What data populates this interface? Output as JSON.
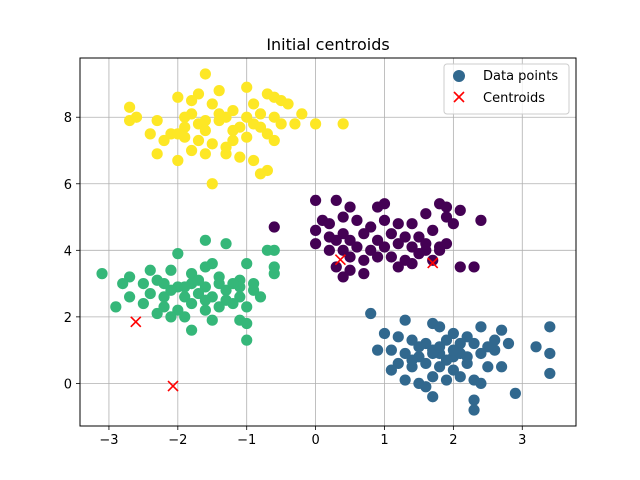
{
  "chart_data": {
    "type": "scatter",
    "title": "Initial centroids",
    "xlabel": "",
    "ylabel": "",
    "xlim": [
      -3.42,
      3.78
    ],
    "ylim": [
      -1.28,
      9.78
    ],
    "xticks": [
      -3,
      -2,
      -1,
      0,
      1,
      2,
      3
    ],
    "yticks": [
      0,
      2,
      4,
      6,
      8
    ],
    "grid": true,
    "legend_position": "top-right",
    "legend": [
      "Data points",
      "Centroids"
    ],
    "clusters": [
      {
        "color": "#fde725",
        "points": [
          [
            -1.6,
            9.3
          ],
          [
            -1.7,
            8.7
          ],
          [
            -1.4,
            8.8
          ],
          [
            -1.0,
            8.9
          ],
          [
            -0.7,
            8.7
          ],
          [
            -0.4,
            8.4
          ],
          [
            -2.7,
            8.3
          ],
          [
            -2.0,
            8.6
          ],
          [
            -1.8,
            8.5
          ],
          [
            -1.5,
            8.4
          ],
          [
            -1.2,
            8.2
          ],
          [
            -0.9,
            8.4
          ],
          [
            -0.6,
            8.6
          ],
          [
            -0.2,
            8.1
          ],
          [
            -2.6,
            8.0
          ],
          [
            -2.3,
            7.9
          ],
          [
            -2.1,
            7.5
          ],
          [
            -1.9,
            7.7
          ],
          [
            -1.7,
            7.8
          ],
          [
            -1.6,
            7.6
          ],
          [
            -1.4,
            7.9
          ],
          [
            -1.3,
            8.0
          ],
          [
            -1.1,
            7.7
          ],
          [
            -0.9,
            7.8
          ],
          [
            -0.7,
            7.5
          ],
          [
            -0.6,
            7.3
          ],
          [
            -0.8,
            7.7
          ],
          [
            -1.0,
            7.4
          ],
          [
            -1.2,
            7.3
          ],
          [
            -1.5,
            7.2
          ],
          [
            -1.7,
            7.3
          ],
          [
            -1.8,
            7.0
          ],
          [
            -2.2,
            7.3
          ],
          [
            -2.3,
            6.9
          ],
          [
            -2.0,
            6.7
          ],
          [
            -1.6,
            6.9
          ],
          [
            -1.3,
            6.9
          ],
          [
            -1.1,
            6.8
          ],
          [
            -0.9,
            6.7
          ],
          [
            -0.7,
            6.4
          ],
          [
            -0.8,
            6.3
          ],
          [
            -1.5,
            6.0
          ],
          [
            -2.4,
            7.5
          ],
          [
            -2.0,
            7.5
          ],
          [
            -1.8,
            8.1
          ],
          [
            -1.4,
            8.1
          ],
          [
            -1.2,
            7.6
          ],
          [
            -0.5,
            7.8
          ],
          [
            -0.3,
            7.8
          ],
          [
            0.0,
            7.8
          ],
          [
            0.4,
            7.8
          ],
          [
            -2.7,
            7.9
          ],
          [
            -1.9,
            8.0
          ],
          [
            -1.6,
            7.9
          ],
          [
            -1.0,
            8.0
          ],
          [
            -0.8,
            8.1
          ],
          [
            -0.6,
            8.0
          ],
          [
            -1.3,
            7.1
          ],
          [
            -1.9,
            7.4
          ],
          [
            -0.5,
            8.5
          ]
        ]
      },
      {
        "color": "#440154",
        "points": [
          [
            -0.6,
            4.7
          ],
          [
            0.0,
            5.5
          ],
          [
            0.3,
            5.5
          ],
          [
            0.5,
            5.3
          ],
          [
            0.9,
            5.3
          ],
          [
            1.0,
            5.4
          ],
          [
            1.8,
            5.4
          ],
          [
            1.9,
            5.3
          ],
          [
            2.1,
            5.2
          ],
          [
            0.1,
            4.9
          ],
          [
            0.2,
            4.8
          ],
          [
            0.4,
            5.0
          ],
          [
            0.6,
            4.9
          ],
          [
            0.8,
            4.7
          ],
          [
            1.0,
            4.9
          ],
          [
            1.2,
            4.8
          ],
          [
            1.4,
            4.8
          ],
          [
            1.6,
            5.1
          ],
          [
            1.9,
            5.0
          ],
          [
            2.4,
            4.9
          ],
          [
            0.0,
            4.6
          ],
          [
            0.2,
            4.4
          ],
          [
            0.4,
            4.5
          ],
          [
            0.5,
            4.3
          ],
          [
            0.7,
            4.5
          ],
          [
            0.9,
            4.3
          ],
          [
            1.1,
            4.5
          ],
          [
            1.3,
            4.4
          ],
          [
            1.5,
            4.4
          ],
          [
            1.7,
            4.6
          ],
          [
            2.0,
            4.8
          ],
          [
            0.0,
            4.2
          ],
          [
            0.2,
            4.0
          ],
          [
            0.4,
            4.0
          ],
          [
            0.6,
            4.1
          ],
          [
            0.8,
            4.0
          ],
          [
            1.0,
            4.1
          ],
          [
            1.2,
            4.2
          ],
          [
            1.4,
            4.1
          ],
          [
            1.6,
            4.0
          ],
          [
            1.8,
            4.1
          ],
          [
            1.9,
            4.2
          ],
          [
            0.5,
            3.8
          ],
          [
            0.7,
            3.7
          ],
          [
            0.9,
            3.8
          ],
          [
            1.1,
            3.8
          ],
          [
            1.3,
            3.7
          ],
          [
            1.5,
            3.9
          ],
          [
            1.7,
            3.7
          ],
          [
            1.8,
            4.0
          ],
          [
            0.3,
            3.5
          ],
          [
            0.5,
            3.4
          ],
          [
            0.7,
            3.3
          ],
          [
            1.2,
            3.5
          ],
          [
            1.4,
            3.6
          ],
          [
            2.1,
            3.5
          ],
          [
            2.3,
            3.5
          ],
          [
            0.4,
            3.2
          ],
          [
            0.3,
            4.3
          ],
          [
            1.6,
            4.2
          ]
        ]
      },
      {
        "color": "#31688e",
        "points": [
          [
            0.8,
            2.1
          ],
          [
            1.3,
            1.9
          ],
          [
            1.7,
            1.8
          ],
          [
            1.8,
            1.7
          ],
          [
            2.0,
            1.5
          ],
          [
            2.4,
            1.7
          ],
          [
            2.7,
            1.6
          ],
          [
            3.4,
            1.7
          ],
          [
            1.0,
            1.5
          ],
          [
            1.2,
            1.4
          ],
          [
            1.4,
            1.3
          ],
          [
            1.6,
            1.2
          ],
          [
            1.9,
            1.3
          ],
          [
            2.1,
            1.2
          ],
          [
            2.3,
            1.2
          ],
          [
            2.6,
            1.3
          ],
          [
            2.8,
            1.2
          ],
          [
            3.2,
            1.1
          ],
          [
            0.9,
            1.0
          ],
          [
            1.1,
            1.0
          ],
          [
            1.3,
            0.9
          ],
          [
            1.5,
            0.8
          ],
          [
            1.7,
            1.0
          ],
          [
            1.8,
            0.9
          ],
          [
            2.0,
            0.8
          ],
          [
            2.2,
            0.8
          ],
          [
            2.4,
            0.9
          ],
          [
            2.6,
            1.0
          ],
          [
            3.4,
            0.9
          ],
          [
            1.2,
            0.6
          ],
          [
            1.4,
            0.5
          ],
          [
            1.6,
            0.6
          ],
          [
            1.8,
            0.5
          ],
          [
            2.0,
            0.4
          ],
          [
            2.2,
            0.6
          ],
          [
            2.5,
            0.5
          ],
          [
            2.7,
            0.5
          ],
          [
            3.4,
            0.3
          ],
          [
            1.3,
            0.1
          ],
          [
            1.5,
            0.0
          ],
          [
            1.7,
            0.2
          ],
          [
            1.9,
            0.1
          ],
          [
            2.1,
            0.2
          ],
          [
            2.3,
            0.1
          ],
          [
            2.4,
            0.0
          ],
          [
            1.6,
            -0.1
          ],
          [
            1.7,
            -0.4
          ],
          [
            2.3,
            -0.5
          ],
          [
            2.9,
            -0.3
          ],
          [
            2.3,
            -0.8
          ],
          [
            1.7,
            0.9
          ],
          [
            2.1,
            0.9
          ],
          [
            1.5,
            1.1
          ],
          [
            1.1,
            0.4
          ],
          [
            2.0,
            1.0
          ],
          [
            2.5,
            1.1
          ],
          [
            1.9,
            0.7
          ],
          [
            1.4,
            0.7
          ],
          [
            2.2,
            1.4
          ],
          [
            1.8,
            1.1
          ]
        ]
      },
      {
        "color": "#35b779",
        "points": [
          [
            -1.6,
            4.3
          ],
          [
            -1.3,
            4.2
          ],
          [
            -0.6,
            4.0
          ],
          [
            -2.0,
            3.9
          ],
          [
            -1.5,
            3.6
          ],
          [
            -1.0,
            3.6
          ],
          [
            -3.1,
            3.3
          ],
          [
            -2.7,
            3.2
          ],
          [
            -2.4,
            3.4
          ],
          [
            -2.1,
            3.4
          ],
          [
            -1.8,
            3.3
          ],
          [
            -1.6,
            3.5
          ],
          [
            -1.4,
            3.2
          ],
          [
            -1.1,
            3.1
          ],
          [
            -0.9,
            3.0
          ],
          [
            -0.6,
            3.3
          ],
          [
            -2.8,
            3.0
          ],
          [
            -2.5,
            3.0
          ],
          [
            -2.2,
            3.0
          ],
          [
            -2.0,
            2.9
          ],
          [
            -1.8,
            3.0
          ],
          [
            -1.6,
            2.9
          ],
          [
            -1.3,
            2.8
          ],
          [
            -1.1,
            2.9
          ],
          [
            -0.9,
            2.8
          ],
          [
            -2.7,
            2.6
          ],
          [
            -2.4,
            2.7
          ],
          [
            -2.2,
            2.6
          ],
          [
            -1.9,
            2.6
          ],
          [
            -1.7,
            2.7
          ],
          [
            -1.5,
            2.6
          ],
          [
            -1.3,
            2.5
          ],
          [
            -1.1,
            2.6
          ],
          [
            -2.9,
            2.3
          ],
          [
            -2.5,
            2.4
          ],
          [
            -2.2,
            2.3
          ],
          [
            -2.0,
            2.2
          ],
          [
            -1.8,
            2.4
          ],
          [
            -1.6,
            2.2
          ],
          [
            -1.4,
            2.3
          ],
          [
            -1.2,
            2.4
          ],
          [
            -1.0,
            2.3
          ],
          [
            -0.8,
            2.6
          ],
          [
            -2.3,
            2.1
          ],
          [
            -2.1,
            2.0
          ],
          [
            -1.9,
            2.0
          ],
          [
            -1.5,
            1.9
          ],
          [
            -1.1,
            1.9
          ],
          [
            -1.0,
            1.8
          ],
          [
            -1.8,
            1.6
          ],
          [
            -1.0,
            1.3
          ],
          [
            -0.6,
            3.5
          ],
          [
            -0.7,
            4.0
          ],
          [
            -1.7,
            3.1
          ],
          [
            -2.1,
            2.8
          ],
          [
            -1.4,
            3.0
          ],
          [
            -1.9,
            2.9
          ],
          [
            -1.6,
            2.5
          ],
          [
            -2.3,
            3.1
          ],
          [
            -1.2,
            3.0
          ]
        ]
      }
    ],
    "centroids": {
      "color": "#ff0000",
      "points": [
        [
          0.36,
          3.72
        ],
        [
          1.7,
          3.62
        ],
        [
          -2.61,
          1.85
        ],
        [
          -2.07,
          -0.08
        ]
      ]
    }
  }
}
